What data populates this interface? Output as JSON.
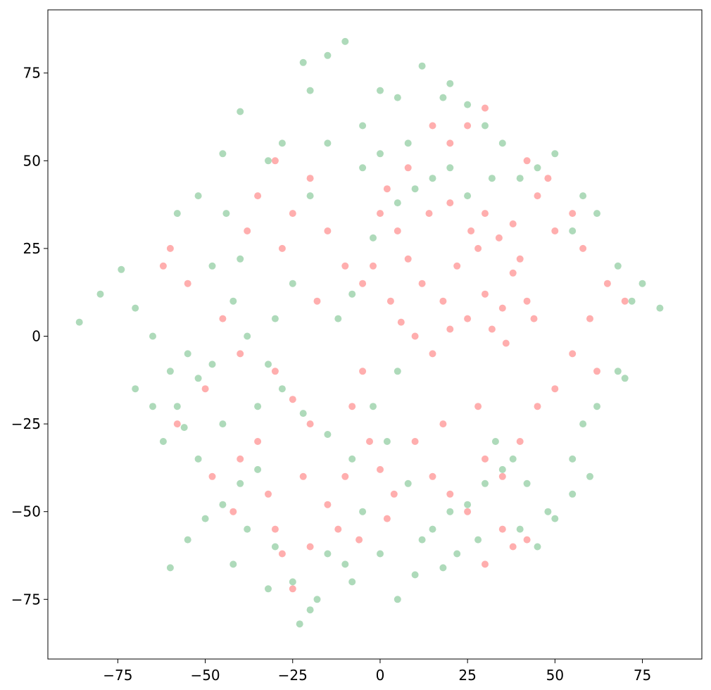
{
  "chart_data": {
    "type": "scatter",
    "title": "",
    "xlabel": "",
    "ylabel": "",
    "xlim": [
      -95,
      92
    ],
    "ylim": [
      -92,
      93
    ],
    "grid": false,
    "legend": "none",
    "x_ticks": [
      -75,
      -50,
      -25,
      0,
      25,
      50,
      75
    ],
    "y_ticks": [
      -75,
      -50,
      -25,
      0,
      25,
      50,
      75
    ],
    "x_tick_labels": [
      "−75",
      "−50",
      "−25",
      "0",
      "25",
      "50",
      "75"
    ],
    "y_tick_labels": [
      "−75",
      "−50",
      "−25",
      "0",
      "25",
      "50",
      "75"
    ],
    "series": [
      {
        "color": "#ff4b4b",
        "opacity": 0.45,
        "points": [
          [
            5,
            30
          ],
          [
            8,
            22
          ],
          [
            12,
            15
          ],
          [
            18,
            10
          ],
          [
            22,
            20
          ],
          [
            28,
            25
          ],
          [
            30,
            12
          ],
          [
            35,
            8
          ],
          [
            38,
            18
          ],
          [
            40,
            22
          ],
          [
            3,
            10
          ],
          [
            6,
            4
          ],
          [
            10,
            0
          ],
          [
            15,
            -5
          ],
          [
            20,
            2
          ],
          [
            25,
            5
          ],
          [
            32,
            2
          ],
          [
            36,
            -2
          ],
          [
            42,
            10
          ],
          [
            44,
            5
          ],
          [
            -2,
            20
          ],
          [
            0,
            35
          ],
          [
            2,
            42
          ],
          [
            8,
            48
          ],
          [
            14,
            35
          ],
          [
            20,
            38
          ],
          [
            26,
            30
          ],
          [
            30,
            35
          ],
          [
            34,
            28
          ],
          [
            38,
            32
          ],
          [
            -5,
            -10
          ],
          [
            -8,
            -20
          ],
          [
            -3,
            -30
          ],
          [
            0,
            -38
          ],
          [
            4,
            -45
          ],
          [
            -10,
            -40
          ],
          [
            -15,
            -48
          ],
          [
            -12,
            -55
          ],
          [
            -6,
            -58
          ],
          [
            2,
            -52
          ],
          [
            -60,
            25
          ],
          [
            -62,
            20
          ],
          [
            -55,
            15
          ],
          [
            -45,
            5
          ],
          [
            -40,
            -5
          ],
          [
            -30,
            -10
          ],
          [
            -25,
            -18
          ],
          [
            -20,
            -25
          ],
          [
            -35,
            -30
          ],
          [
            -40,
            -35
          ],
          [
            -58,
            -25
          ],
          [
            -50,
            -15
          ],
          [
            -48,
            -40
          ],
          [
            -42,
            -50
          ],
          [
            -30,
            -55
          ],
          [
            -28,
            -62
          ],
          [
            -25,
            -72
          ],
          [
            -20,
            -60
          ],
          [
            -32,
            -45
          ],
          [
            -22,
            -40
          ],
          [
            30,
            -35
          ],
          [
            35,
            -40
          ],
          [
            40,
            -30
          ],
          [
            45,
            -20
          ],
          [
            50,
            -15
          ],
          [
            55,
            -5
          ],
          [
            60,
            5
          ],
          [
            65,
            15
          ],
          [
            70,
            10
          ],
          [
            62,
            -10
          ],
          [
            35,
            -55
          ],
          [
            38,
            -60
          ],
          [
            42,
            -58
          ],
          [
            30,
            -65
          ],
          [
            25,
            -50
          ],
          [
            20,
            -45
          ],
          [
            15,
            -40
          ],
          [
            10,
            -30
          ],
          [
            18,
            -25
          ],
          [
            28,
            -20
          ],
          [
            -30,
            50
          ],
          [
            -35,
            40
          ],
          [
            -25,
            35
          ],
          [
            -20,
            45
          ],
          [
            -15,
            30
          ],
          [
            -10,
            20
          ],
          [
            -5,
            15
          ],
          [
            -18,
            10
          ],
          [
            -28,
            25
          ],
          [
            -38,
            30
          ],
          [
            45,
            40
          ],
          [
            50,
            30
          ],
          [
            55,
            35
          ],
          [
            58,
            25
          ],
          [
            48,
            45
          ],
          [
            42,
            50
          ],
          [
            20,
            55
          ],
          [
            25,
            60
          ],
          [
            30,
            65
          ],
          [
            15,
            60
          ]
        ]
      },
      {
        "color": "#6cbb82",
        "opacity": 0.55,
        "points": [
          [
            -86,
            4
          ],
          [
            -80,
            12
          ],
          [
            -74,
            19
          ],
          [
            -70,
            8
          ],
          [
            -65,
            0
          ],
          [
            -60,
            -10
          ],
          [
            -55,
            -5
          ],
          [
            -52,
            -12
          ],
          [
            -48,
            -8
          ],
          [
            -58,
            -20
          ],
          [
            -56,
            -26
          ],
          [
            -62,
            -30
          ],
          [
            -60,
            -66
          ],
          [
            -55,
            -58
          ],
          [
            -50,
            -52
          ],
          [
            -45,
            -48
          ],
          [
            -40,
            -42
          ],
          [
            -35,
            -38
          ],
          [
            -30,
            -60
          ],
          [
            -25,
            -70
          ],
          [
            -23,
            -82
          ],
          [
            -20,
            -78
          ],
          [
            -18,
            -75
          ],
          [
            -10,
            -65
          ],
          [
            -8,
            -70
          ],
          [
            0,
            -62
          ],
          [
            5,
            -75
          ],
          [
            10,
            -68
          ],
          [
            15,
            -55
          ],
          [
            20,
            -50
          ],
          [
            25,
            -48
          ],
          [
            30,
            -42
          ],
          [
            35,
            -38
          ],
          [
            40,
            -55
          ],
          [
            45,
            -60
          ],
          [
            50,
            -52
          ],
          [
            55,
            -35
          ],
          [
            58,
            -25
          ],
          [
            62,
            -20
          ],
          [
            68,
            -10
          ],
          [
            70,
            -12
          ],
          [
            72,
            10
          ],
          [
            75,
            15
          ],
          [
            80,
            8
          ],
          [
            68,
            20
          ],
          [
            62,
            35
          ],
          [
            58,
            40
          ],
          [
            55,
            30
          ],
          [
            50,
            52
          ],
          [
            45,
            48
          ],
          [
            40,
            45
          ],
          [
            35,
            55
          ],
          [
            30,
            60
          ],
          [
            25,
            66
          ],
          [
            20,
            72
          ],
          [
            18,
            68
          ],
          [
            12,
            77
          ],
          [
            5,
            68
          ],
          [
            0,
            70
          ],
          [
            -5,
            60
          ],
          [
            -10,
            84
          ],
          [
            -15,
            80
          ],
          [
            -22,
            78
          ],
          [
            -20,
            70
          ],
          [
            -28,
            55
          ],
          [
            -32,
            50
          ],
          [
            -40,
            64
          ],
          [
            -45,
            52
          ],
          [
            -52,
            40
          ],
          [
            -58,
            35
          ],
          [
            -48,
            20
          ],
          [
            -42,
            10
          ],
          [
            -38,
            0
          ],
          [
            -32,
            -8
          ],
          [
            -28,
            -15
          ],
          [
            -22,
            -22
          ],
          [
            -15,
            -28
          ],
          [
            -8,
            -35
          ],
          [
            -2,
            -20
          ],
          [
            5,
            -10
          ],
          [
            -12,
            5
          ],
          [
            -8,
            12
          ],
          [
            -2,
            28
          ],
          [
            5,
            38
          ],
          [
            10,
            42
          ],
          [
            15,
            45
          ],
          [
            20,
            48
          ],
          [
            25,
            40
          ],
          [
            32,
            45
          ],
          [
            -5,
            48
          ],
          [
            0,
            52
          ],
          [
            8,
            55
          ],
          [
            -15,
            55
          ],
          [
            -20,
            40
          ],
          [
            -25,
            15
          ],
          [
            -30,
            5
          ],
          [
            -40,
            22
          ],
          [
            -44,
            35
          ],
          [
            -65,
            -20
          ],
          [
            -70,
            -15
          ],
          [
            60,
            -40
          ],
          [
            55,
            -45
          ],
          [
            48,
            -50
          ],
          [
            42,
            -42
          ],
          [
            38,
            -35
          ],
          [
            33,
            -30
          ],
          [
            28,
            -58
          ],
          [
            22,
            -62
          ],
          [
            18,
            -66
          ],
          [
            12,
            -58
          ],
          [
            -35,
            -20
          ],
          [
            -45,
            -25
          ],
          [
            -52,
            -35
          ],
          [
            -38,
            -55
          ],
          [
            -42,
            -65
          ],
          [
            -32,
            -72
          ],
          [
            -15,
            -62
          ],
          [
            -5,
            -50
          ],
          [
            8,
            -42
          ],
          [
            2,
            -30
          ]
        ]
      }
    ]
  }
}
